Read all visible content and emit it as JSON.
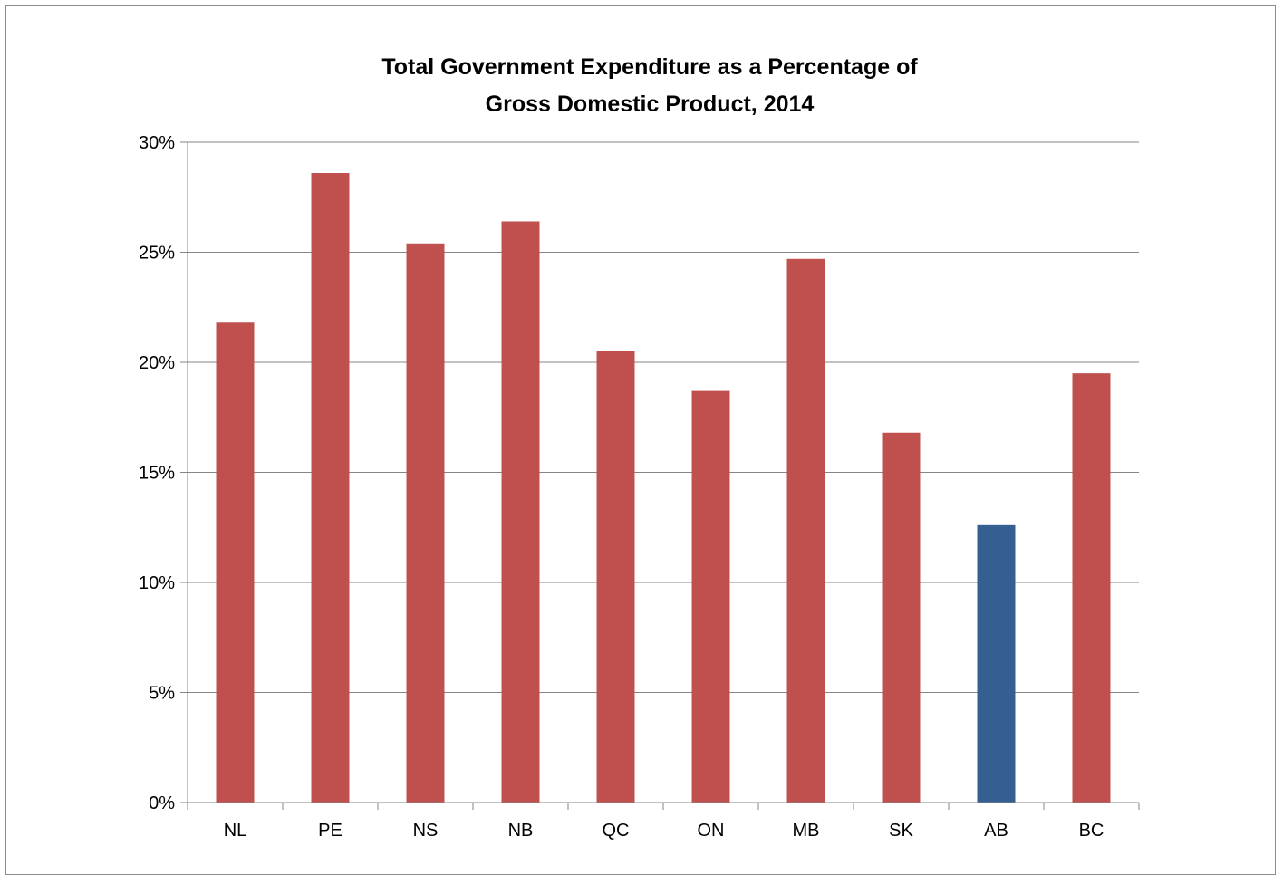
{
  "chart_data": {
    "type": "bar",
    "title_lines": [
      "Total Government Expenditure as a Percentage of",
      "Gross Domestic Product, 2014"
    ],
    "xlabel": "",
    "ylabel": "",
    "categories": [
      "NL",
      "PE",
      "NS",
      "NB",
      "QC",
      "ON",
      "MB",
      "SK",
      "AB",
      "BC"
    ],
    "series": [
      {
        "values": [
          21.8,
          28.6,
          25.4,
          26.4,
          20.5,
          18.7,
          24.7,
          16.8,
          12.6,
          19.5
        ]
      }
    ],
    "ylim": [
      0,
      30
    ],
    "yticks": [
      0,
      5,
      10,
      15,
      20,
      25,
      30
    ],
    "ytick_labels": [
      "0%",
      "5%",
      "10%",
      "15%",
      "20%",
      "25%",
      "30%"
    ],
    "grid": "horizontal",
    "legend": "none",
    "colors": {
      "default_bar": "#c0504d",
      "highlight_bar": "#355f91",
      "gridline": "#868686",
      "axis": "#868686"
    },
    "highlight_category": "AB"
  }
}
